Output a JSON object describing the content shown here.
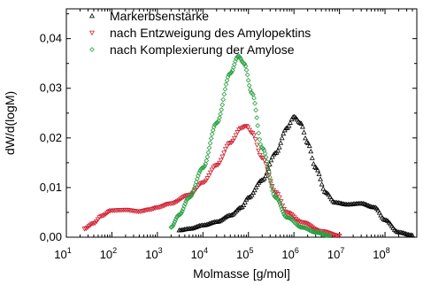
{
  "chart_data": {
    "type": "scatter",
    "xlabel": "Molmasse [g/mol]",
    "ylabel": "dW/d(logM)",
    "x_scale": "log",
    "xlim": [
      10,
      500000000
    ],
    "ylim": [
      0,
      0.046
    ],
    "y_ticks": [
      "0,00",
      "0,01",
      "0,02",
      "0,03",
      "0,04"
    ],
    "x_ticks": [
      {
        "base": "10",
        "exp": "1"
      },
      {
        "base": "10",
        "exp": "2"
      },
      {
        "base": "10",
        "exp": "3"
      },
      {
        "base": "10",
        "exp": "4"
      },
      {
        "base": "10",
        "exp": "5"
      },
      {
        "base": "10",
        "exp": "6"
      },
      {
        "base": "10",
        "exp": "7"
      },
      {
        "base": "10",
        "exp": "8"
      }
    ],
    "legend_position": "top-left",
    "series": [
      {
        "name": "Markerbsenstärke",
        "color": "#000000",
        "marker": "triangle-up",
        "points": [
          [
            3000,
            0.0014
          ],
          [
            5000,
            0.0017
          ],
          [
            10000,
            0.0024
          ],
          [
            20000,
            0.0031
          ],
          [
            40000,
            0.0044
          ],
          [
            70000,
            0.006
          ],
          [
            100000,
            0.008
          ],
          [
            200000,
            0.0115
          ],
          [
            400000,
            0.017
          ],
          [
            700000,
            0.022
          ],
          [
            1000000,
            0.0243
          ],
          [
            1400000,
            0.023
          ],
          [
            2000000,
            0.019
          ],
          [
            3000000,
            0.014
          ],
          [
            5000000,
            0.009
          ],
          [
            8000000,
            0.007
          ],
          [
            15000000,
            0.0066
          ],
          [
            30000000,
            0.0068
          ],
          [
            60000000,
            0.006
          ],
          [
            100000000,
            0.0035
          ],
          [
            200000000,
            0.001
          ],
          [
            400000000,
            0.0004
          ]
        ]
      },
      {
        "name": "nach Entzweigung des Amylopektins",
        "color": "#d02030",
        "marker": "triangle-down",
        "points": [
          [
            25,
            0.0017
          ],
          [
            40,
            0.0028
          ],
          [
            60,
            0.0043
          ],
          [
            100,
            0.0054
          ],
          [
            200,
            0.0055
          ],
          [
            400,
            0.0052
          ],
          [
            700,
            0.0056
          ],
          [
            1000,
            0.006
          ],
          [
            2000,
            0.0068
          ],
          [
            5000,
            0.0085
          ],
          [
            10000,
            0.011
          ],
          [
            20000,
            0.0145
          ],
          [
            40000,
            0.019
          ],
          [
            70000,
            0.022
          ],
          [
            90000,
            0.0224
          ],
          [
            120000,
            0.021
          ],
          [
            200000,
            0.016
          ],
          [
            400000,
            0.009
          ],
          [
            700000,
            0.005
          ],
          [
            1500000,
            0.003
          ],
          [
            4000000,
            0.0012
          ],
          [
            10000000,
            0.0003
          ]
        ]
      },
      {
        "name": "nach Komplexierung der Amylose",
        "color": "#28a040",
        "marker": "diamond",
        "points": [
          [
            2000,
            0.002
          ],
          [
            3000,
            0.0045
          ],
          [
            5000,
            0.008
          ],
          [
            10000,
            0.014
          ],
          [
            20000,
            0.023
          ],
          [
            40000,
            0.033
          ],
          [
            60000,
            0.0365
          ],
          [
            80000,
            0.035
          ],
          [
            120000,
            0.029
          ],
          [
            200000,
            0.018
          ],
          [
            400000,
            0.008
          ],
          [
            700000,
            0.004
          ],
          [
            1500000,
            0.002
          ],
          [
            3000000,
            0.001
          ],
          [
            6000000,
            0.0003
          ]
        ]
      }
    ]
  }
}
